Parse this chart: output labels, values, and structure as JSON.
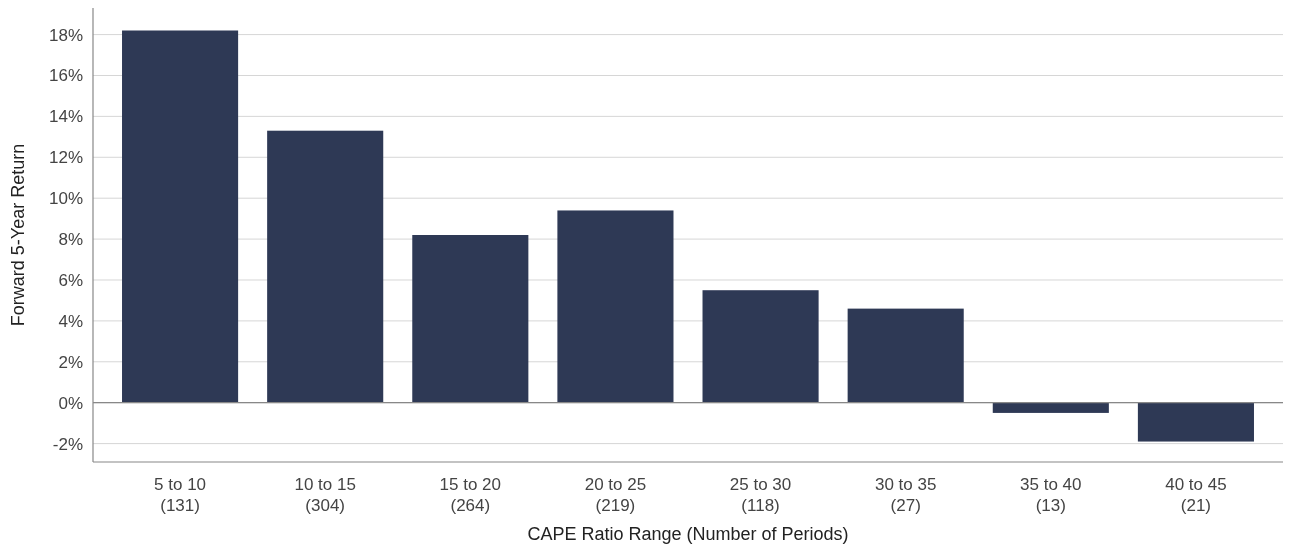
{
  "chart_data": {
    "type": "bar",
    "xlabel": "CAPE Ratio Range (Number of Periods)",
    "ylabel": "Forward 5-Year Return",
    "categories": [
      "5 to 10\n(131)",
      "10 to 15\n(304)",
      "15 to 20\n(264)",
      "20 to 25\n(219)",
      "25 to 30\n(118)",
      "30 to 35\n(27)",
      "35 to 40\n(13)",
      "40 to 45\n(21)"
    ],
    "values": [
      18.2,
      13.3,
      8.2,
      9.4,
      5.5,
      4.6,
      -0.5,
      -1.9
    ],
    "color": "#2e3955",
    "ylim": [
      -2.9,
      19.3
    ],
    "yticks": [
      {
        "value": -2,
        "label": "-2%"
      },
      {
        "value": 0,
        "label": "0%"
      },
      {
        "value": 2,
        "label": "2%"
      },
      {
        "value": 4,
        "label": "4%"
      },
      {
        "value": 6,
        "label": "6%"
      },
      {
        "value": 8,
        "label": "8%"
      },
      {
        "value": 10,
        "label": "10%"
      },
      {
        "value": 12,
        "label": "12%"
      },
      {
        "value": 14,
        "label": "14%"
      },
      {
        "value": 16,
        "label": "16%"
      },
      {
        "value": 18,
        "label": "18%"
      }
    ],
    "grid": "y"
  }
}
